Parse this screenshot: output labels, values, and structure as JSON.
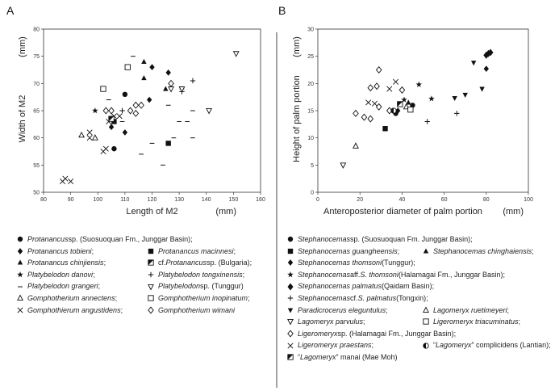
{
  "chart_data": [
    {
      "type": "scatter",
      "panel_label": "A",
      "xlabel": "Length of M2",
      "ylabel": "Width of M2",
      "x_unit": "(mm)",
      "y_unit": "(mm)",
      "xlim": [
        80,
        160
      ],
      "ylim": [
        50,
        80
      ],
      "xticks": [
        80,
        90,
        100,
        110,
        120,
        130,
        140,
        150,
        160
      ],
      "yticks": [
        50,
        55,
        60,
        65,
        70,
        75,
        80
      ],
      "grid": false,
      "series": [
        {
          "name": "Protanancus sp. (Suosuoquan Fm., Junggar Basin)",
          "marker": "circle",
          "points": [
            [
              106,
              58
            ],
            [
              110,
              68
            ]
          ]
        },
        {
          "name": "Protanancus tobieni",
          "marker": "diamond",
          "points": [
            [
              105,
              62
            ],
            [
              110,
              61
            ],
            [
              119,
              67
            ],
            [
              120,
              73
            ],
            [
              126,
              72
            ]
          ]
        },
        {
          "name": "Protanancus chinjiensis",
          "marker": "triangle",
          "points": [
            [
              117,
              74
            ],
            [
              117,
              71
            ],
            [
              125,
              69
            ]
          ]
        },
        {
          "name": "Platybelodon danovi",
          "marker": "star",
          "points": [
            [
              99,
              65
            ]
          ]
        },
        {
          "name": "Platybelodon grangeri",
          "marker": "dash",
          "points": [
            [
              104,
              67
            ],
            [
              113,
              75
            ],
            [
              109,
              63
            ],
            [
              116,
              57
            ],
            [
              120,
              59
            ],
            [
              124,
              55
            ],
            [
              126,
              66
            ],
            [
              128,
              60
            ],
            [
              130,
              63
            ],
            [
              131,
              69
            ],
            [
              133,
              63
            ],
            [
              135,
              60
            ],
            [
              135,
              65
            ]
          ]
        },
        {
          "name": "Gomphotherium annectens",
          "marker": "triangle-open",
          "points": [
            [
              94,
              60.5
            ],
            [
              99,
              60
            ]
          ]
        },
        {
          "name": "Gomphotherium angustidens",
          "marker": "x",
          "points": [
            [
              87,
              52
            ],
            [
              88,
              52.5
            ],
            [
              90,
              52
            ],
            [
              97,
              61
            ],
            [
              97,
              60
            ],
            [
              102,
              57.5
            ],
            [
              103,
              58
            ],
            [
              104,
              63
            ],
            [
              106,
              64
            ],
            [
              108,
              64
            ]
          ]
        },
        {
          "name": "Protanancus macinnesi",
          "marker": "square",
          "points": [
            [
              106,
              63
            ],
            [
              126,
              59
            ]
          ]
        },
        {
          "name": "cf. Protanancus sp. (Bulgaria)",
          "marker": "square-half",
          "points": [
            [
              105,
              63.5
            ]
          ]
        },
        {
          "name": "Platybelodon tongxinensis",
          "marker": "plus",
          "points": [
            [
              109,
              65
            ],
            [
              131,
              68.5
            ],
            [
              135,
              70.5
            ]
          ]
        },
        {
          "name": "Platybelodon sp. (Tunggur)",
          "marker": "triangle-down-open",
          "points": [
            [
              127,
              69
            ],
            [
              131,
              69
            ],
            [
              141,
              65
            ],
            [
              151,
              75.5
            ]
          ]
        },
        {
          "name": "Gomphotherium inopinatum",
          "marker": "square-open",
          "points": [
            [
              102,
              69
            ],
            [
              111,
              73
            ]
          ]
        },
        {
          "name": "Gomphotherium wimani",
          "marker": "diamond-open",
          "points": [
            [
              103,
              65
            ],
            [
              105,
              65
            ],
            [
              112,
              65
            ],
            [
              114,
              66
            ],
            [
              114,
              64.5
            ],
            [
              116,
              66
            ],
            [
              127,
              70
            ]
          ]
        }
      ]
    },
    {
      "type": "scatter",
      "panel_label": "B",
      "xlabel": "Anteroposterior diameter of palm portion",
      "ylabel": "Height of palm portion",
      "x_unit": "(mm)",
      "y_unit": "(mm)",
      "xlim": [
        0,
        100
      ],
      "ylim": [
        0,
        30
      ],
      "xticks": [
        0,
        20,
        40,
        60,
        80,
        100
      ],
      "yticks": [
        0,
        5,
        10,
        15,
        20,
        25,
        30
      ],
      "grid": false,
      "series": [
        {
          "name": "Stephanocemas sp. (Suosuoquan Fm. Junggar Basin)",
          "marker": "circle",
          "points": [
            [
              37,
              14.5
            ],
            [
              45,
              16
            ]
          ]
        },
        {
          "name": "Stephanocemas guangheensis",
          "marker": "square",
          "points": [
            [
              32,
              11.7
            ]
          ]
        },
        {
          "name": "Stephanocemas thomsoni (Tunggur)",
          "marker": "diamond",
          "points": [
            [
              38,
              15
            ],
            [
              80,
              22.7
            ]
          ]
        },
        {
          "name": "Stephanocemas aff. S. thomsoni (Halamagai Fm., Junggar Basin)",
          "marker": "star",
          "points": [
            [
              41,
              17
            ],
            [
              48,
              19.8
            ],
            [
              54,
              17.2
            ]
          ]
        },
        {
          "name": "Stephanocemas palmatus (Qaidam Basin)",
          "marker": "diamond-big",
          "points": [
            [
              80,
              25.2
            ],
            [
              81,
              25.5
            ],
            [
              82,
              25.7
            ]
          ]
        },
        {
          "name": "Stephanocemas cf. S. palmatus (Tongxin)",
          "marker": "plus",
          "points": [
            [
              52,
              13
            ],
            [
              66,
              14.5
            ]
          ]
        },
        {
          "name": "Paradicrocerus elegantulus",
          "marker": "triangle-down",
          "points": [
            [
              65,
              17.3
            ],
            [
              70,
              17.9
            ],
            [
              74,
              23.8
            ],
            [
              78,
              19
            ]
          ]
        },
        {
          "name": "Stephanocemas chinghaiensis",
          "marker": "triangle",
          "points": [
            [
              43,
              16.5
            ]
          ]
        },
        {
          "name": "Lagomeryx ruetimeyeri",
          "marker": "triangle-open",
          "points": [
            [
              18,
              8.5
            ],
            [
              42,
              15.7
            ]
          ]
        },
        {
          "name": "Lagomeryx parvulus",
          "marker": "triangle-down-open",
          "points": [
            [
              12,
              5
            ]
          ]
        },
        {
          "name": "Ligeromeryx triacuminatus",
          "marker": "square-open",
          "points": [
            [
              44,
              15.2
            ]
          ]
        },
        {
          "name": "Ligeromeryx sp. (Halamagai Fm., Junggar Basin)",
          "marker": "diamond-open",
          "points": [
            [
              18,
              14.5
            ],
            [
              22,
              13.8
            ],
            [
              25,
              13.5
            ],
            [
              25,
              19.2
            ],
            [
              28,
              19.5
            ],
            [
              29,
              22.5
            ],
            [
              34,
              15
            ],
            [
              29,
              15.7
            ],
            [
              40,
              18.8
            ]
          ]
        },
        {
          "name": "Ligeromeryx praestans",
          "marker": "x",
          "points": [
            [
              24,
              16.5
            ],
            [
              27,
              16.3
            ],
            [
              34,
              19
            ],
            [
              37,
              20.3
            ]
          ]
        },
        {
          "name": "\"Lagomeryx\" complicidens (Lantian)",
          "marker": "circle-half",
          "points": [
            [
              36,
              15
            ]
          ]
        },
        {
          "name": "\"Lagomeryx\" manai (Mae Moh)",
          "marker": "square-half",
          "points": [
            [
              39,
              16.2
            ]
          ]
        }
      ]
    }
  ],
  "legend_A": [
    [
      {
        "marker": "circle",
        "sp": "Protanancus",
        "rest": " sp. (Suosuoquan Fm., Junggar Basin);"
      }
    ],
    [
      {
        "marker": "diamond",
        "sp": "Protanancus tobieni",
        "rest": ";"
      },
      {
        "marker": "square",
        "sp": "Protanancus macinnesi",
        "rest": ";"
      }
    ],
    [
      {
        "marker": "triangle",
        "sp": "Protanancus chinjiensis",
        "rest": ";"
      },
      {
        "marker": "square-half",
        "sp": "",
        "rest": "cf. ",
        "sp2": "Protanancus",
        "rest2": " sp. (Bulgaria);"
      }
    ],
    [
      {
        "marker": "star",
        "sp": "Platybelodon danovi",
        "rest": ";"
      },
      {
        "marker": "plus",
        "sp": "Platybelodon tongxinensis",
        "rest": ";"
      }
    ],
    [
      {
        "marker": "dash",
        "sp": "Platybelodon grangeri",
        "rest": ";"
      },
      {
        "marker": "triangle-down-open",
        "sp": "Platybelodon",
        "rest": " sp. (Tunggur)"
      }
    ],
    [
      {
        "marker": "triangle-open",
        "sp": "Gomphotherium annectens",
        "rest": ";"
      },
      {
        "marker": "square-open",
        "sp": "Gomphotherium inopinatum",
        "rest": ";"
      }
    ],
    [
      {
        "marker": "x",
        "sp": "Gomphothierum angustidens",
        "rest": ";"
      },
      {
        "marker": "diamond-open",
        "sp": "Gomphotherium wimani",
        "rest": ""
      }
    ]
  ],
  "legend_B": [
    [
      {
        "marker": "circle",
        "sp": "Stephanocemas",
        "rest": " sp. (Suosuoquan Fm. Junggar Basin);"
      }
    ],
    [
      {
        "marker": "square",
        "sp": "Stephanocemas guangheensis",
        "rest": ";"
      },
      {
        "marker": "triangle",
        "sp": "Stephanocemas chinghaiensis",
        "rest": ";"
      }
    ],
    [
      {
        "marker": "diamond",
        "sp": "Stephanocemas thomsoni",
        "rest": " (Tunggur);"
      }
    ],
    [
      {
        "marker": "star",
        "sp": "Stephanocemas",
        "rest": " aff. ",
        "sp2": "S. thomsoni",
        "rest2": " (Halamagai Fm., Junggar Basin);"
      }
    ],
    [
      {
        "marker": "diamond-big",
        "sp": "Stephanocemas palmatus",
        "rest": " (Qaidam Basin);"
      }
    ],
    [
      {
        "marker": "plus",
        "sp": "Stephanocemas",
        "rest": " cf. ",
        "sp2": "S. palmatus",
        "rest2": " (Tongxin);"
      }
    ],
    [
      {
        "marker": "triangle-down",
        "sp": "Paradicrocerus eleguntulus",
        "rest": ";"
      },
      {
        "marker": "triangle-open",
        "sp": "Lagomeryx ruetimeyeri",
        "rest": ";"
      }
    ],
    [
      {
        "marker": "triangle-down-open",
        "sp": "Lagomeryx parvulus",
        "rest": ";"
      },
      {
        "marker": "square-open",
        "sp": "Ligeromeryx triacuminatus",
        "rest": ";"
      }
    ],
    [
      {
        "marker": "diamond-open",
        "sp": "Ligeromeryx",
        "rest": " sp. (Halamagai Fm., Junggar Basin);"
      }
    ],
    [
      {
        "marker": "x",
        "sp": "Ligeromeryx praestans",
        "rest": ";"
      },
      {
        "marker": "circle-half",
        "sp": "",
        "rest": "“",
        "sp2": "Lagomeryx",
        "rest2": "” complicidens (Lantian);"
      }
    ],
    [
      {
        "marker": "square-half",
        "sp": "",
        "rest": "“",
        "sp2": "Lagomeryx",
        "rest2": "” manai (Mae Moh)"
      }
    ]
  ]
}
